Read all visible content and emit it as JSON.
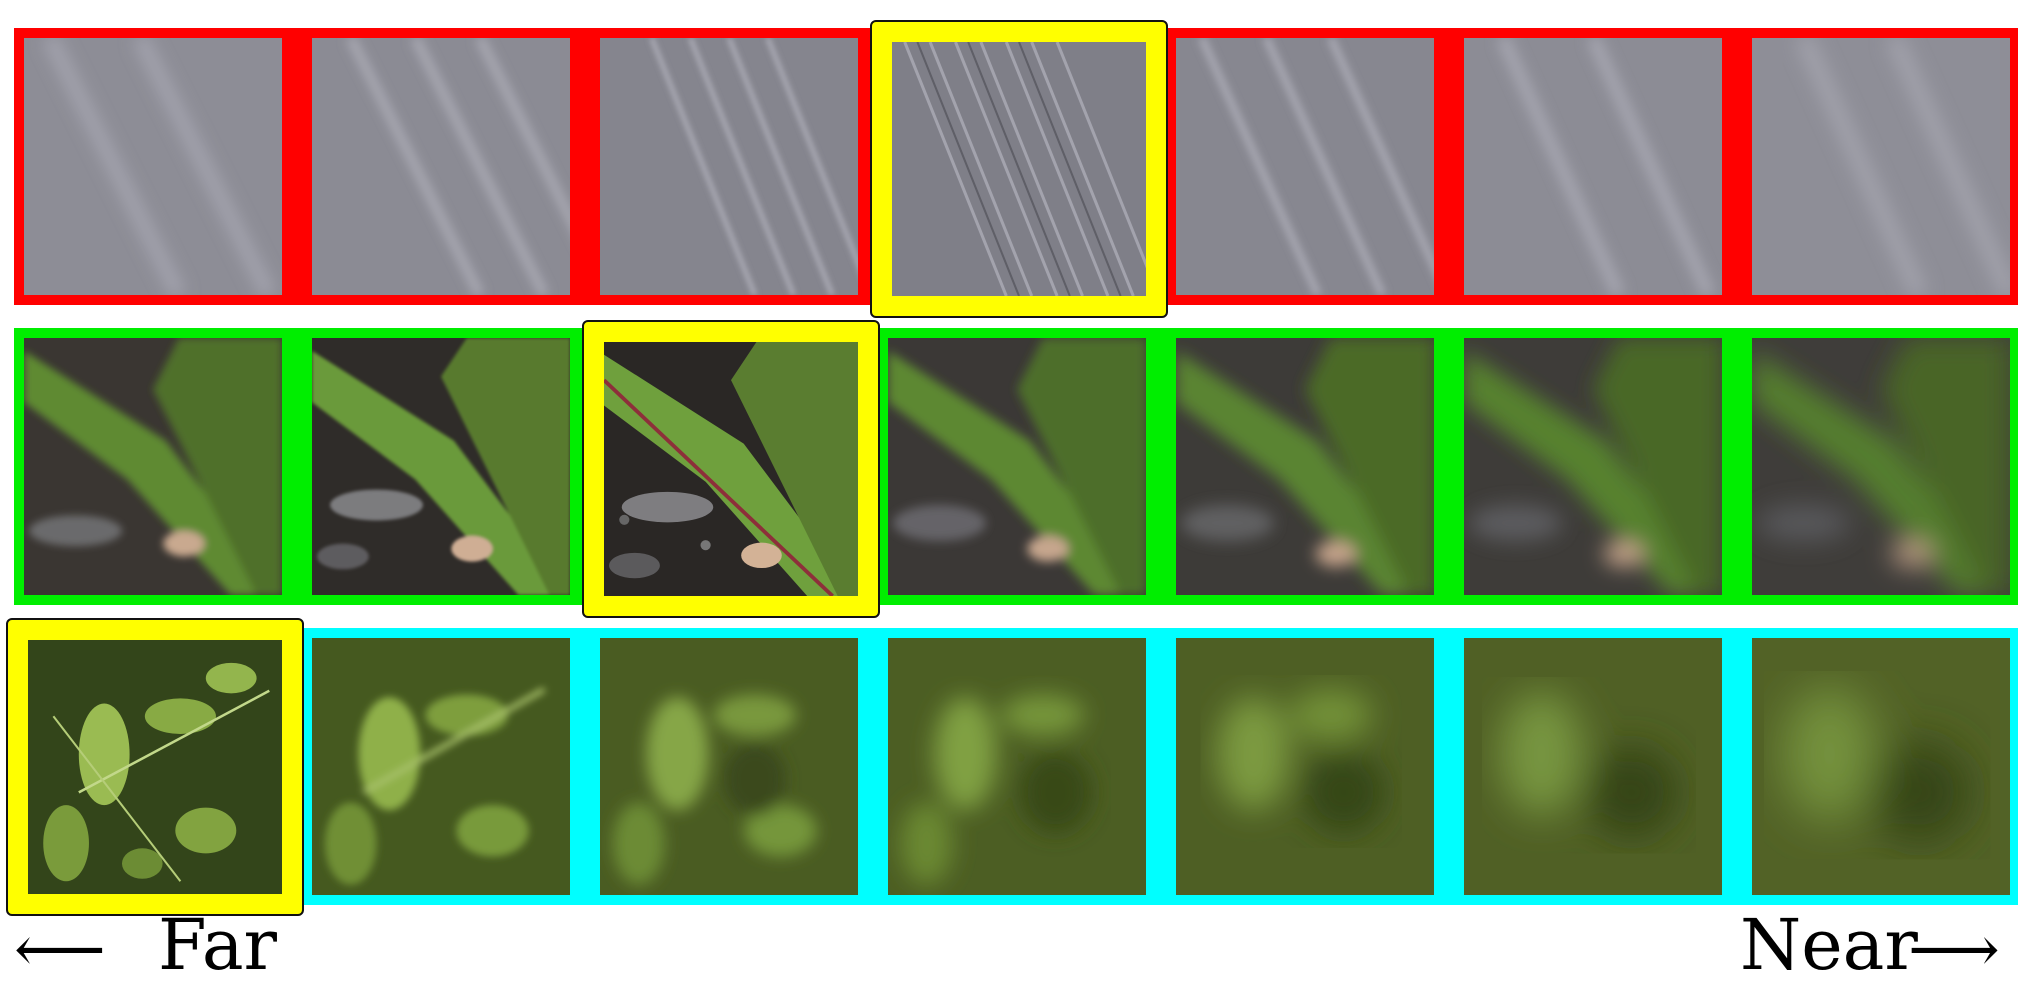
{
  "figure": {
    "rows": [
      {
        "name": "stone",
        "border_color": "#ff0000",
        "focus_index": 3
      },
      {
        "name": "plant",
        "border_color": "#00ee00",
        "focus_index": 2
      },
      {
        "name": "foliage",
        "border_color": "#00ffff",
        "focus_index": 0
      }
    ],
    "highlight_color": "#ffff00",
    "tiles_per_row": 7
  },
  "axis": {
    "left_label": "Far",
    "right_label": "Near",
    "left_arrow": "⟵",
    "right_arrow": "⟶"
  }
}
